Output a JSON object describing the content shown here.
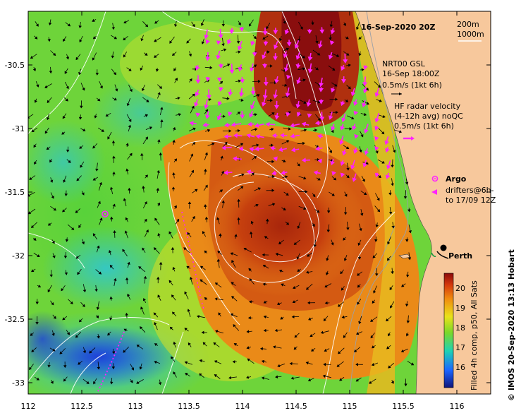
{
  "map": {
    "date_label": "16-Sep-2020 20Z",
    "contours": [
      "200m",
      "1000m"
    ],
    "gsl_legend": {
      "line1": "NRT00 GSL",
      "line2": "16-Sep 18:00Z",
      "line3": "0.5m/s (1kt 6h)"
    },
    "hf_legend": {
      "line1": "HF radar velocity",
      "line2": "(4-12h avg) noQC",
      "line3": "0.5m/s (1kt 6h)"
    },
    "argo_label": "Argo",
    "drifters_label_1": "drifters@6h-",
    "drifters_label_2": "to 17/09 12Z",
    "city_label": "Perth",
    "colorbar_title": "Filled 4h comp, p50, All Sats",
    "colorbar_ticks": [
      "20",
      "19",
      "18",
      "17",
      "16"
    ],
    "credit": "© IMOS 20-Sep-2020 13:13 Hobart",
    "x_ticks": [
      "112",
      "112.5",
      "113",
      "113.5",
      "114",
      "114.5",
      "115",
      "115.5",
      "116"
    ],
    "y_ticks": [
      "-30.5",
      "-31",
      "-31.5",
      "-32",
      "-32.5",
      "-33"
    ],
    "colors": {
      "land": "#f7c89c",
      "hf_arrows": "#ff22ff",
      "city_dot": "#000000"
    }
  }
}
